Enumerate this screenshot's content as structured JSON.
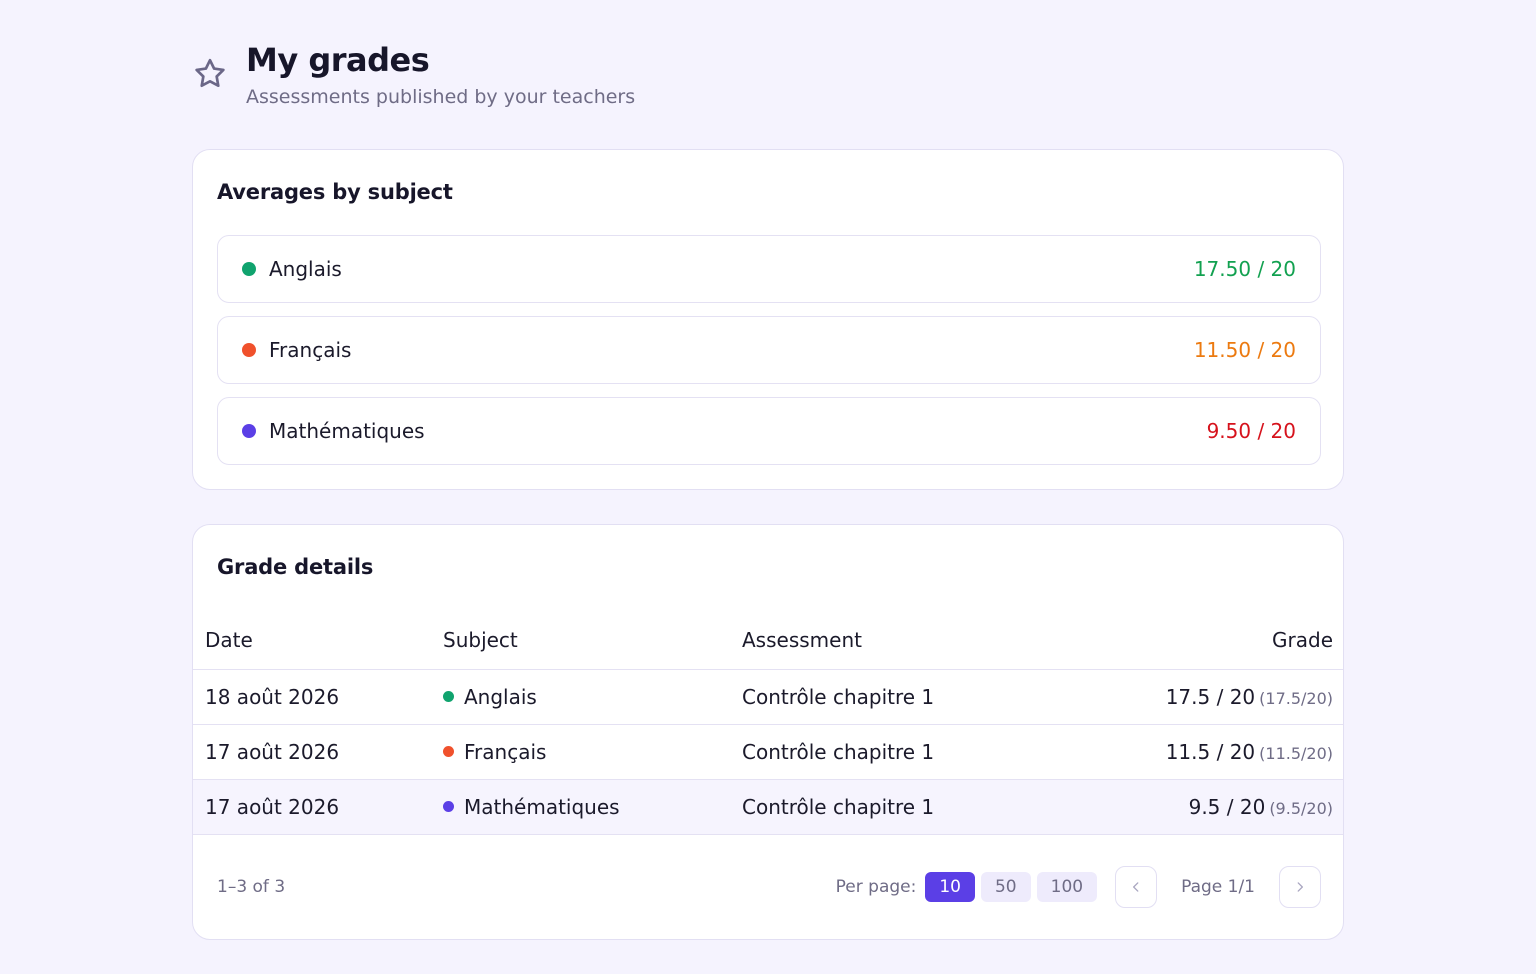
{
  "header": {
    "title": "My grades",
    "subtitle": "Assessments published by your teachers",
    "icon": "star-icon"
  },
  "averages": {
    "title": "Averages by subject",
    "items": [
      {
        "subject": "Anglais",
        "value": "17.50 / 20",
        "dot_color": "#10a36e",
        "value_color": "#12a150"
      },
      {
        "subject": "Français",
        "value": "11.50 / 20",
        "dot_color": "#f0512c",
        "value_color": "#ec7a10"
      },
      {
        "subject": "Mathématiques",
        "value": "9.50 / 20",
        "dot_color": "#5b3fe6",
        "value_color": "#d6121c"
      }
    ]
  },
  "details": {
    "title": "Grade details",
    "columns": {
      "date": "Date",
      "subject": "Subject",
      "assessment": "Assessment",
      "grade": "Grade"
    },
    "rows": [
      {
        "date": "18 août 2026",
        "subject": "Anglais",
        "dot_color": "#10a36e",
        "assessment": "Contrôle chapitre 1",
        "grade": "17.5 / 20",
        "raw": "(17.5/20)"
      },
      {
        "date": "17 août 2026",
        "subject": "Français",
        "dot_color": "#f0512c",
        "assessment": "Contrôle chapitre 1",
        "grade": "11.5 / 20",
        "raw": "(11.5/20)"
      },
      {
        "date": "17 août 2026",
        "subject": "Mathématiques",
        "dot_color": "#5b3fe6",
        "assessment": "Contrôle chapitre 1",
        "grade": "9.5 / 20",
        "raw": "(9.5/20)"
      }
    ],
    "footer": {
      "range": "1–3 of 3",
      "per_page_label": "Per page:",
      "per_page_options": [
        "10",
        "50",
        "100"
      ],
      "per_page_selected": "10",
      "page_label": "Page 1/1"
    }
  },
  "colors": {
    "accent": "#5b3fe6",
    "background": "#f5f3fe"
  }
}
